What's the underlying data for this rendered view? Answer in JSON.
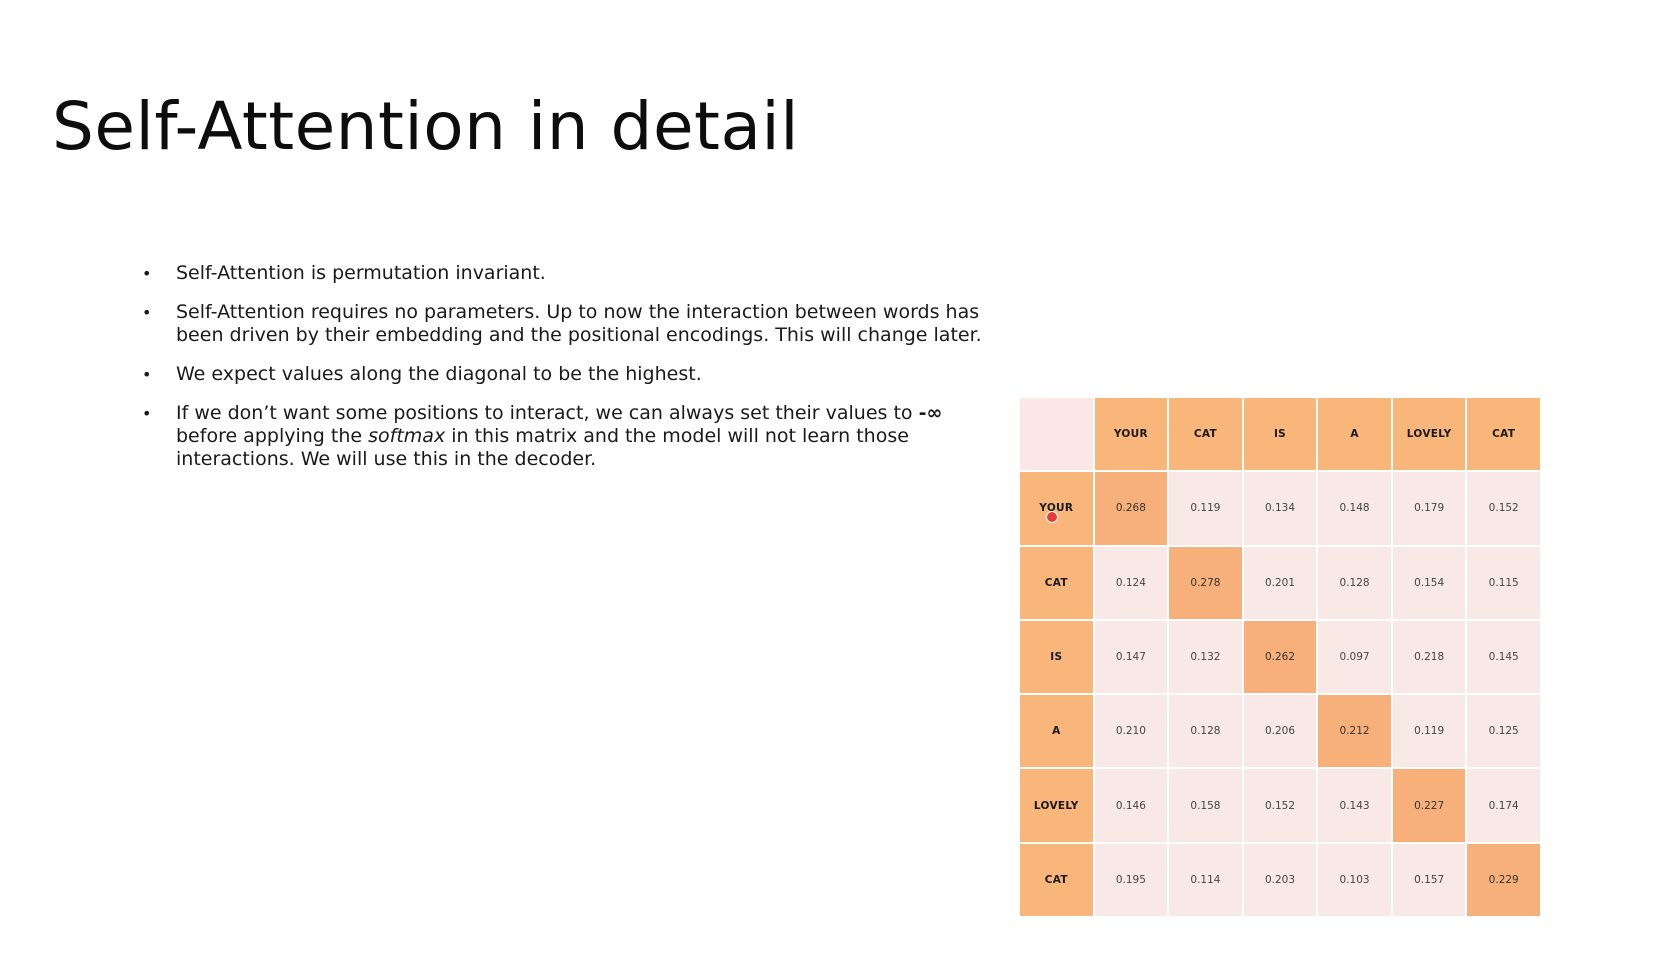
{
  "slide": {
    "title": "Self-Attention in detail"
  },
  "bullets": [
    "Self-Attention is permutation invariant.",
    "Self-Attention requires no parameters. Up to now the interaction between words has been driven by their embedding and the positional encodings. This will change later.",
    "We expect values along the diagonal to be the highest.",
    {
      "before": "If we don’t want some positions to interact, we can always set their values to ",
      "neg_inf": "-∞",
      "middle": " before applying the ",
      "softmax": "softmax",
      "after": " in this matrix and the model will not learn those interactions. We will use this in the decoder."
    }
  ],
  "chart_data": {
    "type": "heatmap",
    "title": "",
    "col_labels": [
      "YOUR",
      "CAT",
      "IS",
      "A",
      "LOVELY",
      "CAT"
    ],
    "row_labels": [
      "YOUR",
      "CAT",
      "IS",
      "A",
      "LOVELY",
      "CAT"
    ],
    "values": [
      [
        "0.268",
        "0.119",
        "0.134",
        "0.148",
        "0.179",
        "0.152"
      ],
      [
        "0.124",
        "0.278",
        "0.201",
        "0.128",
        "0.154",
        "0.115"
      ],
      [
        "0.147",
        "0.132",
        "0.262",
        "0.097",
        "0.218",
        "0.145"
      ],
      [
        "0.210",
        "0.128",
        "0.206",
        "0.212",
        "0.119",
        "0.125"
      ],
      [
        "0.146",
        "0.158",
        "0.152",
        "0.143",
        "0.227",
        "0.174"
      ],
      [
        "0.195",
        "0.114",
        "0.203",
        "0.103",
        "0.157",
        "0.229"
      ]
    ],
    "header_color": "#f9b67a",
    "cell_color": "#f9e9e6",
    "highlight_color": "#f8b07b"
  }
}
